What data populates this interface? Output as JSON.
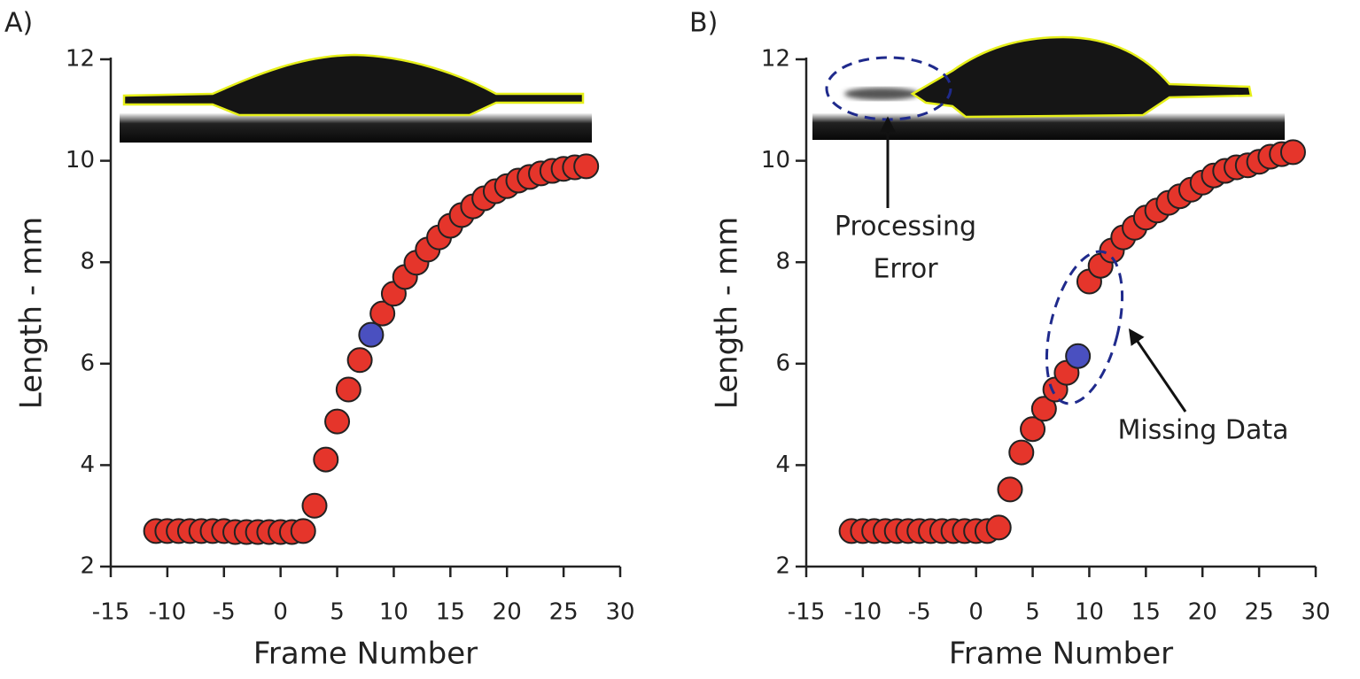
{
  "chart_data": [
    {
      "type": "scatter",
      "label": "A)",
      "xlabel": "Frame Number",
      "ylabel": "Length - mm",
      "xlim": [
        -15,
        30
      ],
      "xticks": [
        -15,
        -10,
        -5,
        0,
        5,
        10,
        15,
        20,
        25,
        30
      ],
      "ylim": [
        2,
        12
      ],
      "yticks": [
        2,
        4,
        6,
        8,
        10,
        12
      ],
      "series": [
        {
          "color": "#e5352b",
          "x": [
            -11,
            -10,
            -9,
            -8,
            -7,
            -6,
            -5,
            -4,
            -3,
            -2,
            -1,
            0,
            1,
            2,
            3,
            4,
            5,
            6,
            7,
            9,
            10,
            11,
            12,
            13,
            14,
            15,
            16,
            17,
            18,
            19,
            20,
            21,
            22,
            23,
            24,
            25,
            26,
            27
          ],
          "values": [
            2.7,
            2.7,
            2.7,
            2.7,
            2.7,
            2.7,
            2.7,
            2.68,
            2.68,
            2.68,
            2.68,
            2.68,
            2.68,
            2.7,
            3.2,
            4.11,
            4.86,
            5.49,
            6.07,
            6.99,
            7.38,
            7.71,
            7.99,
            8.25,
            8.49,
            8.72,
            8.93,
            9.1,
            9.26,
            9.4,
            9.5,
            9.61,
            9.68,
            9.75,
            9.8,
            9.84,
            9.87,
            9.89
          ]
        },
        {
          "color": "#4a50c0",
          "x": [
            8
          ],
          "values": [
            6.57
          ]
        }
      ],
      "annotations": []
    },
    {
      "type": "scatter",
      "label": "B)",
      "xlabel": "Frame Number",
      "ylabel": "Length - mm",
      "xlim": [
        -15,
        30
      ],
      "xticks": [
        -15,
        -10,
        -5,
        0,
        5,
        10,
        15,
        20,
        25,
        30
      ],
      "ylim": [
        2,
        12
      ],
      "yticks": [
        2,
        4,
        6,
        8,
        10,
        12
      ],
      "series": [
        {
          "color": "#e5352b",
          "x": [
            -11,
            -10,
            -9,
            -8,
            -7,
            -6,
            -5,
            -4,
            -3,
            -2,
            -1,
            0,
            1,
            2,
            3,
            4,
            5,
            6,
            7,
            8,
            10,
            11,
            12,
            13,
            14,
            15,
            16,
            17,
            18,
            19,
            20,
            21,
            22,
            23,
            24,
            25,
            26,
            27,
            28
          ],
          "values": [
            2.7,
            2.7,
            2.7,
            2.7,
            2.7,
            2.7,
            2.7,
            2.7,
            2.7,
            2.7,
            2.7,
            2.7,
            2.7,
            2.77,
            3.52,
            4.25,
            4.71,
            5.11,
            5.49,
            5.82,
            7.62,
            7.93,
            8.23,
            8.49,
            8.68,
            8.88,
            9.02,
            9.17,
            9.3,
            9.43,
            9.57,
            9.71,
            9.8,
            9.87,
            9.91,
            9.98,
            10.08,
            10.13,
            10.17
          ]
        },
        {
          "color": "#4a50c0",
          "x": [
            9
          ],
          "values": [
            6.15
          ]
        }
      ],
      "annotations": [
        [
          "Processing",
          "Error"
        ],
        [
          "Missing Data"
        ]
      ]
    }
  ]
}
